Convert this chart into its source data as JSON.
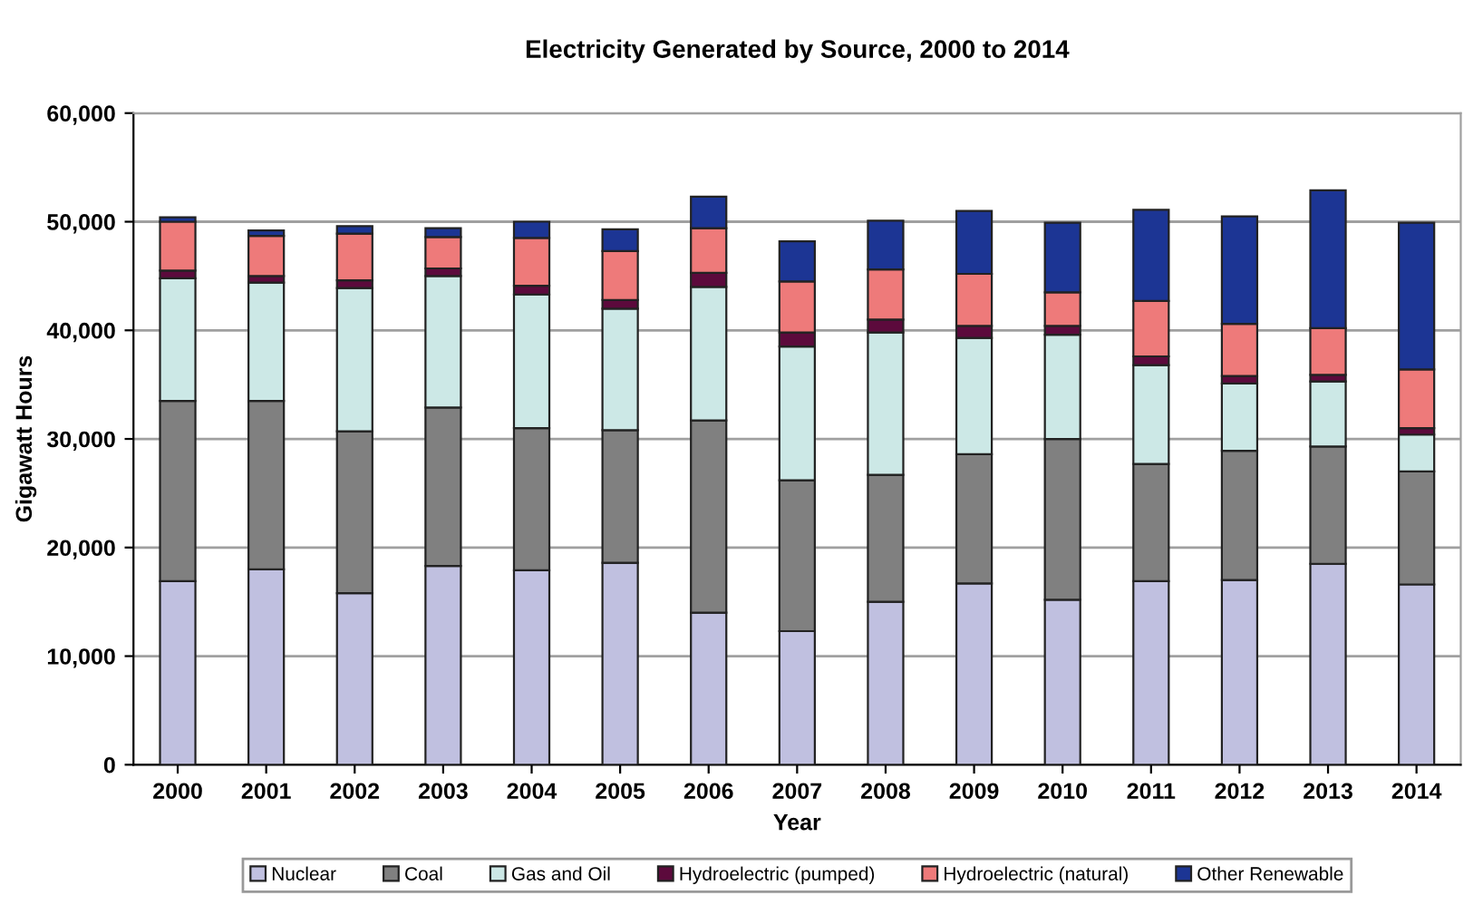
{
  "chart_data": {
    "type": "bar",
    "stacked": true,
    "title": "Electricity Generated by Source, 2000 to 2014",
    "xlabel": "Year",
    "ylabel": "Gigawatt Hours",
    "categories": [
      "2000",
      "2001",
      "2002",
      "2003",
      "2004",
      "2005",
      "2006",
      "2007",
      "2008",
      "2009",
      "2010",
      "2011",
      "2012",
      "2013",
      "2014"
    ],
    "ylim": [
      0,
      60000
    ],
    "yticks": [
      {
        "value": 0,
        "label": "0"
      },
      {
        "value": 10000,
        "label": "10,000"
      },
      {
        "value": 20000,
        "label": "20,000"
      },
      {
        "value": 30000,
        "label": "30,000"
      },
      {
        "value": 40000,
        "label": "40,000"
      },
      {
        "value": 50000,
        "label": "50,000"
      },
      {
        "value": 60000,
        "label": "60,000"
      }
    ],
    "grid": "y",
    "legend": "bottom",
    "series": [
      {
        "name": "Nuclear",
        "color": "#c0c0e0",
        "values": [
          16900,
          18000,
          15800,
          18300,
          17900,
          18600,
          14000,
          12300,
          15000,
          16700,
          15200,
          16900,
          17000,
          18500,
          16600
        ]
      },
      {
        "name": "Coal",
        "color": "#808080",
        "values": [
          16600,
          15500,
          14900,
          14600,
          13100,
          12200,
          17700,
          13900,
          11700,
          11900,
          14800,
          10800,
          11900,
          10800,
          10400
        ]
      },
      {
        "name": "Gas and Oil",
        "color": "#cce8e6",
        "values": [
          11300,
          10900,
          13200,
          12100,
          12300,
          11200,
          12300,
          12300,
          13100,
          10700,
          9600,
          9100,
          6200,
          6000,
          3400
        ]
      },
      {
        "name": "Hydroelectric (pumped)",
        "color": "#5c0a3c",
        "values": [
          700,
          600,
          700,
          700,
          800,
          800,
          1300,
          1300,
          1200,
          1100,
          800,
          800,
          700,
          600,
          600
        ]
      },
      {
        "name": "Hydroelectric (natural)",
        "color": "#ee7a7a",
        "values": [
          4500,
          3700,
          4300,
          2900,
          4400,
          4500,
          4100,
          4700,
          4600,
          4800,
          3100,
          5100,
          4800,
          4300,
          5400
        ]
      },
      {
        "name": "Other Renewable",
        "color": "#1c3594",
        "values": [
          400,
          500,
          700,
          800,
          1500,
          2000,
          2900,
          3700,
          4500,
          5800,
          6400,
          8400,
          9900,
          12700,
          13500
        ]
      }
    ]
  }
}
